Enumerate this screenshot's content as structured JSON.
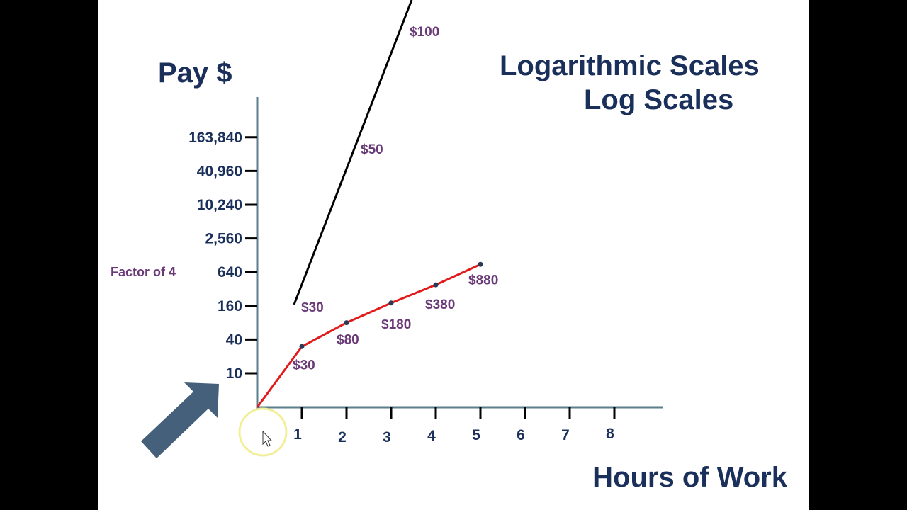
{
  "slide": {
    "title_line1": "Logarithmic Scales",
    "title_line2": "Log Scales"
  },
  "chart_data": {
    "type": "line",
    "ylabel": "Pay $",
    "xlabel": "Hours of Work",
    "yscale": "log",
    "y_ticks": [
      10,
      40,
      160,
      640,
      2560,
      10240,
      40960,
      163840
    ],
    "y_tick_labels": [
      "10",
      "40",
      "160",
      "640",
      "2,560",
      "10,240",
      "40,960",
      "163,840"
    ],
    "x_ticks": [
      1,
      2,
      3,
      4,
      5,
      6,
      7,
      8
    ],
    "x_tick_labels": [
      "1",
      "2",
      "3",
      "4",
      "5",
      "6",
      "7",
      "8"
    ],
    "annotations": [
      "Factor of 4"
    ],
    "series": [
      {
        "x": [
          1,
          2,
          3,
          4,
          5
        ],
        "y": [
          30,
          80,
          180,
          380,
          880
        ],
        "point_labels": [
          "$30",
          "$80",
          "$180",
          "$380",
          "$880"
        ],
        "color": "#e11b1b",
        "markers": true
      },
      {
        "point_labels": [
          "$30",
          "$50",
          "$100"
        ],
        "color": "#000000",
        "markers": false
      }
    ]
  },
  "colors": {
    "axis": "#5b7f8c",
    "title": "#1a2f5a",
    "label": "#6a3a78",
    "arrow": "#45607a",
    "highlight": "#f2ef9a"
  },
  "icons": [
    "block-arrow-icon",
    "mouse-cursor-icon",
    "cursor-highlight-icon"
  ]
}
